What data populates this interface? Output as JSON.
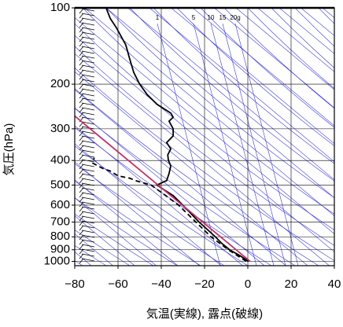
{
  "chart_data": {
    "type": "line",
    "xlabel": "気温(実線), 露点(破線)",
    "ylabel": "気圧(hPa)",
    "annotations": [
      "1",
      "5",
      "10",
      "15",
      "20g"
    ],
    "xlim": [
      -80,
      40
    ],
    "xticks": [
      {
        "value": -80,
        "label": "−80"
      },
      {
        "value": -60,
        "label": "−60"
      },
      {
        "value": -40,
        "label": "−40"
      },
      {
        "value": -20,
        "label": "−20"
      },
      0,
      20,
      40
    ],
    "ylim": [
      100,
      1040
    ],
    "yticks": [
      100,
      200,
      300,
      400,
      500,
      600,
      700,
      800,
      900,
      1000
    ],
    "log_y": true,
    "y_inverted": true,
    "grid": true,
    "series": [
      {
        "color": "#000000",
        "style": "solid",
        "y": [
          1000,
          950,
          900,
          850,
          800,
          700,
          600,
          550,
          520,
          500,
          480,
          450,
          420,
          400,
          380,
          360,
          340,
          320,
          300,
          280,
          270,
          260,
          240,
          220,
          200,
          180,
          160,
          140,
          120,
          110,
          100
        ],
        "x": [
          0.4,
          -3.6,
          -8.4,
          -12,
          -15,
          -22.5,
          -30,
          -34.5,
          -39,
          -42,
          -37.5,
          -36.4,
          -35.6,
          -36.7,
          -37,
          -35.6,
          -37.5,
          -34.5,
          -34.5,
          -36.4,
          -34.5,
          -35.6,
          -42,
          -46.5,
          -50,
          -52.7,
          -54.5,
          -56.4,
          -60.7,
          -63.6,
          -65.5
        ]
      },
      {
        "color": "#000000",
        "style": "dashed",
        "y": [
          1000,
          900,
          800,
          700,
          600,
          550,
          500,
          480,
          470,
          460,
          440,
          430,
          410,
          390
        ],
        "x": [
          -0.7,
          -9,
          -17,
          -24,
          -32,
          -38,
          -44.7,
          -52,
          -54.5,
          -60,
          -63.6,
          -67,
          -71.6,
          -71
        ]
      },
      {
        "color": "#c0306a",
        "style": "solid",
        "y": [
          1000,
          267
        ],
        "x": [
          1.1,
          -80
        ]
      }
    ]
  }
}
